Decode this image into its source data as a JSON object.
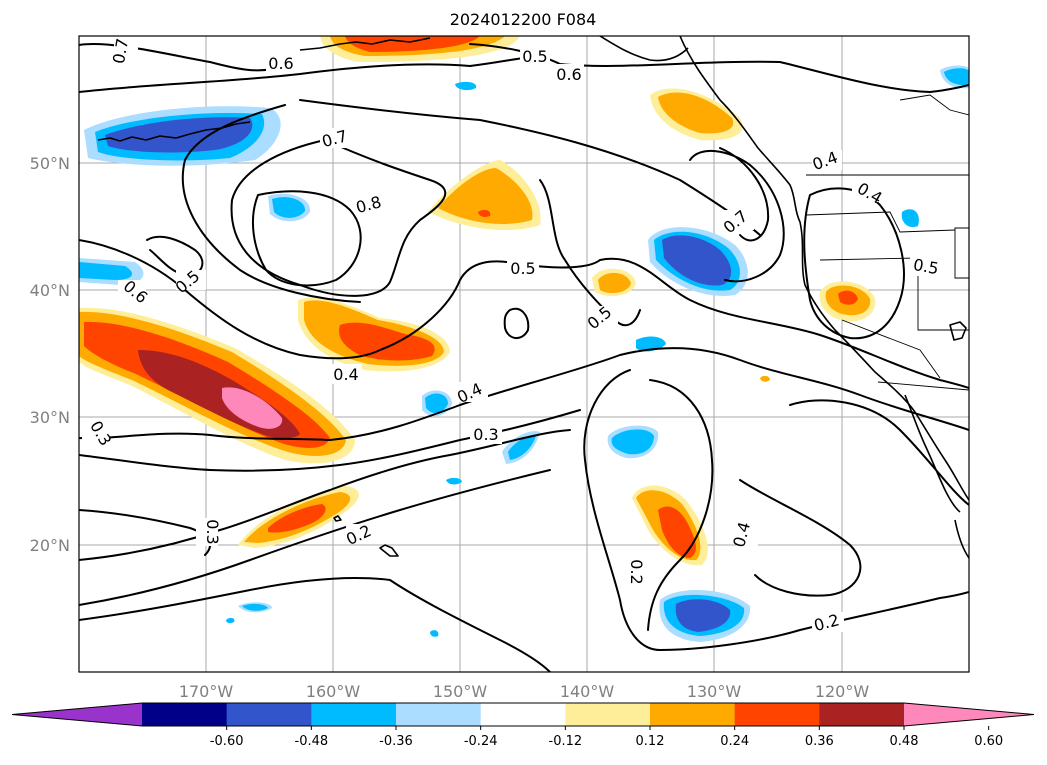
{
  "title": "2024012200 F084",
  "map": {
    "lat_labels": [
      "50°N",
      "40°N",
      "30°N",
      "20°N"
    ],
    "lon_labels": [
      "170°W",
      "160°W",
      "150°W",
      "140°W",
      "130°W",
      "120°W"
    ],
    "contour_labels": [
      "0.7",
      "0.6",
      "0.5",
      "0.6",
      "0.7",
      "0.8",
      "0.4",
      "0.4",
      "0.7",
      "0.5",
      "0.6",
      "0.5",
      "0.5",
      "0.5",
      "0.4",
      "0.4",
      "0.3",
      "0.3",
      "0.3",
      "0.2",
      "0.2",
      "0.4",
      "0.2"
    ]
  },
  "colorbar": {
    "colors": [
      "#9933cc",
      "#000088",
      "#3355cc",
      "#00bbff",
      "#aaddff",
      "#ffffff",
      "#ffee99",
      "#ffaa00",
      "#ff4400",
      "#aa2222",
      "#ff88bb"
    ],
    "tick_labels": [
      "-0.60",
      "-0.48",
      "-0.36",
      "-0.24",
      "-0.12",
      "0.12",
      "0.24",
      "0.36",
      "0.48",
      "0.60"
    ]
  }
}
